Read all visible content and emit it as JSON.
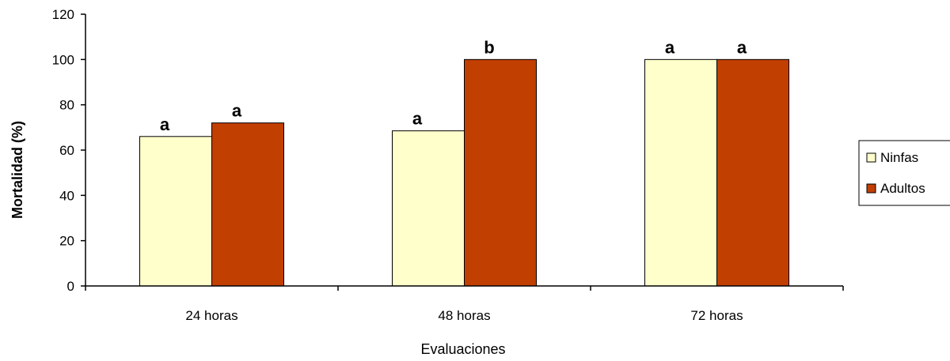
{
  "chart_data": {
    "type": "bar",
    "title": "",
    "xlabel": "Evaluaciones",
    "ylabel": "Mortalidad (%)",
    "ylim": [
      0,
      120
    ],
    "yticks": [
      "0",
      "20",
      "40",
      "60",
      "80",
      "100",
      "120"
    ],
    "categories": [
      "24 horas",
      "48 horas",
      "72 horas"
    ],
    "series": [
      {
        "name": "Ninfas",
        "color": "#ffffcc",
        "values": [
          66,
          68.5,
          100
        ],
        "labels": [
          "a",
          "a",
          "a"
        ]
      },
      {
        "name": "Adultos",
        "color": "#c13f00",
        "values": [
          72,
          100,
          100
        ],
        "labels": [
          "a",
          "b",
          "a"
        ]
      }
    ],
    "grid": false,
    "legend": "right"
  }
}
